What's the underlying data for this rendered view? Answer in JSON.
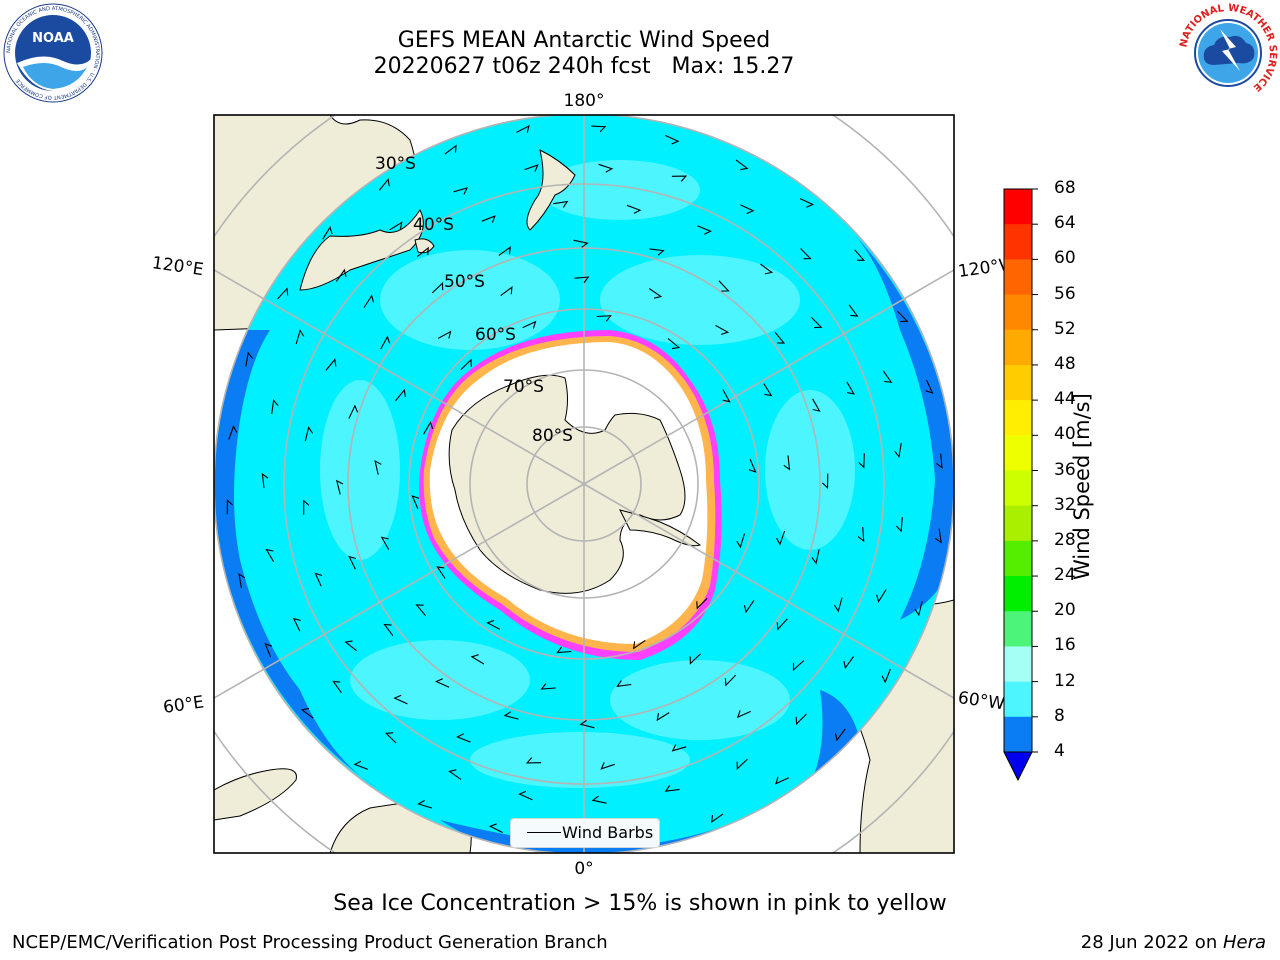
{
  "header": {
    "title_line1": "GEFS MEAN Antarctic Wind Speed",
    "title_line2": "20220627 t06z 240h fcst   Max: 15.27"
  },
  "logos": {
    "left": "NOAA",
    "left_ring_text": "NATIONAL OCEANIC AND ATMOSPHERIC ADMINISTRATION · U.S. DEPARTMENT OF COMMERCE",
    "right_ring_text": "NATIONAL WEATHER SERVICE"
  },
  "map": {
    "longitude_labels": {
      "top": "180°",
      "bottom": "0°",
      "upper_left": "120°E",
      "upper_right": "120°W",
      "lower_left": "60°E",
      "lower_right": "60°W"
    },
    "latitude_labels": [
      "30°S",
      "40°S",
      "50°S",
      "60°S",
      "70°S",
      "80°S"
    ],
    "legend_label": "Wind Barbs",
    "colors": {
      "land": "#efecd8",
      "ocean_4_8": "#0a7df5",
      "ocean_8_12": "#00f0ff",
      "ocean_12_16": "#4cf5ff",
      "sea_ice_edge": "#ff40ff",
      "sea_ice_high": "#ffb44c",
      "sea_ice_interior": "#ffffff",
      "grid": "#b4b4b4"
    }
  },
  "colorbar": {
    "label": "Wind Speed [m/s]",
    "ticks": [
      "68",
      "64",
      "60",
      "56",
      "52",
      "48",
      "44",
      "40",
      "36",
      "32",
      "28",
      "24",
      "20",
      "16",
      "12",
      "8",
      "4"
    ],
    "colors": [
      "#ff0000",
      "#ff3300",
      "#ff6600",
      "#ff8800",
      "#ffaa00",
      "#ffcc00",
      "#ffee00",
      "#eeff00",
      "#ccff00",
      "#aaee00",
      "#55ee00",
      "#00ee00",
      "#4cf57a",
      "#a6fff4",
      "#4cf5ff",
      "#00f0ff",
      "#0a7df5"
    ],
    "under_color": "#0000ee"
  },
  "caption": "Sea Ice Concentration > 15% is shown in pink to yellow",
  "footer": {
    "left": "NCEP/EMC/Verification Post Processing Product Generation Branch",
    "right_prefix": "28 Jun 2022 on ",
    "right_host": "Hera"
  }
}
